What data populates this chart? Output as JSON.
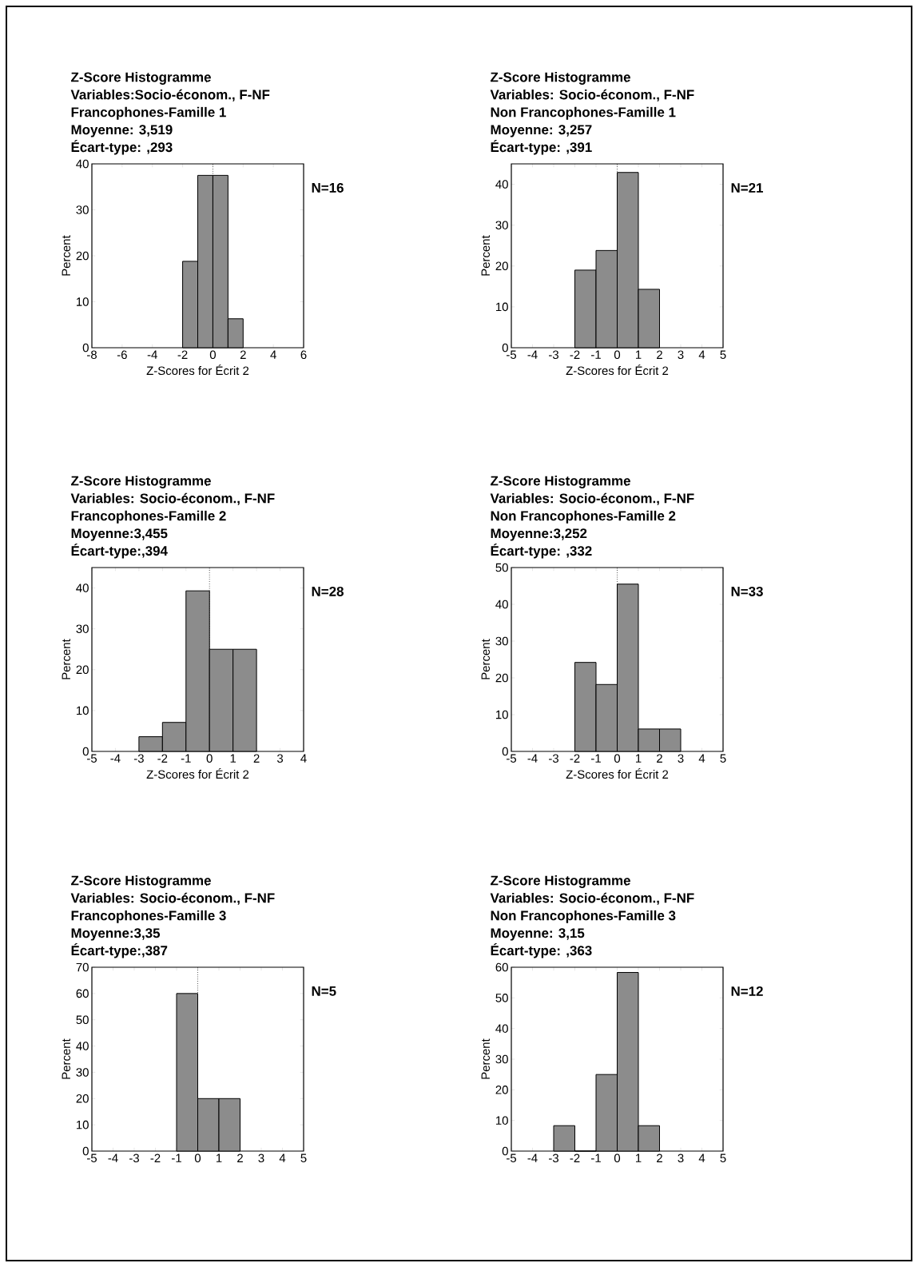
{
  "chart_data": [
    {
      "type": "histogram",
      "title": "Z-Score Histogramme",
      "subtitle": "Variables:Socio-économ., F-NF",
      "annotations": [
        "Francophones-Famille 1",
        "Moyenne: 3,519",
        "Écart-type: ,293"
      ],
      "y2label": "N=16",
      "xlabel": "Z-Scores for Écrit 2",
      "ylabel": "Percent",
      "bins": [
        -2,
        -1,
        0,
        1,
        2
      ],
      "values": [
        18.8,
        37.5,
        37.5,
        6.3
      ],
      "color": "#8c8c8c",
      "xlim": [
        -8,
        6
      ],
      "xticks": [
        -8,
        -6,
        -4,
        -2,
        0,
        2,
        4,
        6
      ],
      "ylim": [
        0,
        40
      ],
      "yticks": [
        0,
        10,
        20,
        30,
        40
      ],
      "ref_lines": [
        {
          "axis": "x",
          "value": 0,
          "line_style": "dotted"
        }
      ]
    },
    {
      "type": "histogram",
      "title": "Z-Score Histogramme",
      "subtitle": "Variables: Socio-économ., F-NF",
      "annotations": [
        "Non Francophones-Famille 1",
        "Moyenne: 3,257",
        "Écart-type: ,391"
      ],
      "y2label": "N=21",
      "xlabel": "Z-Scores for Écrit 2",
      "ylabel": "Percent",
      "bins": [
        -2,
        -1,
        0,
        1,
        2
      ],
      "values": [
        19.0,
        23.8,
        42.9,
        14.3
      ],
      "color": "#8c8c8c",
      "xlim": [
        -5,
        5
      ],
      "xticks": [
        -5,
        -4,
        -3,
        -2,
        -1,
        0,
        1,
        2,
        3,
        4,
        5
      ],
      "ylim": [
        0,
        45
      ],
      "yticks": [
        0,
        10,
        20,
        30,
        40
      ],
      "ref_lines": [
        {
          "axis": "x",
          "value": 0,
          "line_style": "dotted"
        }
      ]
    },
    {
      "type": "histogram",
      "title": "Z-Score Histogramme",
      "subtitle": "Variables: Socio-économ., F-NF",
      "annotations": [
        "Francophones-Famille 2",
        "Moyenne:3,455",
        "Écart-type:,394"
      ],
      "y2label": "N=28",
      "xlabel": "Z-Scores for Écrit 2",
      "ylabel": "Percent",
      "bins": [
        -3,
        -2,
        -1,
        0,
        1,
        2
      ],
      "values": [
        3.6,
        7.1,
        39.3,
        25.0,
        25.0
      ],
      "color": "#8c8c8c",
      "xlim": [
        -5,
        4
      ],
      "xticks": [
        -5,
        -4,
        -3,
        -2,
        -1,
        0,
        1,
        2,
        3,
        4
      ],
      "ylim": [
        0,
        45
      ],
      "yticks": [
        0,
        10,
        20,
        30,
        40
      ],
      "ref_lines": [
        {
          "axis": "x",
          "value": 0,
          "line_style": "dotted"
        }
      ]
    },
    {
      "type": "histogram",
      "title": "Z-Score Histogramme",
      "subtitle": "Variables: Socio-économ., F-NF",
      "annotations": [
        "Non Francophones-Famille 2",
        "Moyenne:3,252",
        "Écart-type: ,332"
      ],
      "y2label": "N=33",
      "xlabel": "Z-Scores for Écrit 2",
      "ylabel": "Percent",
      "bins": [
        -2,
        -1,
        0,
        1,
        2,
        3
      ],
      "values": [
        24.2,
        18.2,
        45.5,
        6.1,
        6.1
      ],
      "color": "#8c8c8c",
      "xlim": [
        -5,
        5
      ],
      "xticks": [
        -5,
        -4,
        -3,
        -2,
        -1,
        0,
        1,
        2,
        3,
        4,
        5
      ],
      "ylim": [
        0,
        50
      ],
      "yticks": [
        0,
        10,
        20,
        30,
        40,
        50
      ],
      "ref_lines": [
        {
          "axis": "x",
          "value": 0,
          "line_style": "dotted"
        }
      ]
    },
    {
      "type": "histogram",
      "title": "Z-Score Histogramme",
      "subtitle": "Variables: Socio-économ., F-NF",
      "annotations": [
        "Francophones-Famille 3",
        "Moyenne:3,35",
        "Écart-type:,387"
      ],
      "y2label": "N=5",
      "ylabel": "Percent",
      "bins": [
        -1,
        0,
        1,
        2
      ],
      "values": [
        60,
        20,
        20
      ],
      "color": "#8c8c8c",
      "xlim": [
        -5,
        5
      ],
      "xticks": [
        -5,
        -4,
        -3,
        -2,
        -1,
        0,
        1,
        2,
        3,
        4,
        5
      ],
      "ylim": [
        0,
        70
      ],
      "yticks": [
        0,
        10,
        20,
        30,
        40,
        50,
        60,
        70
      ],
      "ref_lines": [
        {
          "axis": "x",
          "value": 0,
          "line_style": "dotted"
        }
      ]
    },
    {
      "type": "histogram",
      "title": "Z-Score Histogramme",
      "subtitle": "Variables: Socio-économ., F-NF",
      "annotations": [
        "Non Francophones-Famille 3",
        "Moyenne: 3,15",
        "Écart-type: ,363"
      ],
      "y2label": "N=12",
      "ylabel": "Percent",
      "bins": [
        -3,
        -2,
        -1,
        0,
        1,
        2
      ],
      "values": [
        8.3,
        0,
        25.0,
        58.3,
        8.3
      ],
      "color": "#8c8c8c",
      "xlim": [
        -5,
        5
      ],
      "xticks": [
        -5,
        -4,
        -3,
        -2,
        -1,
        0,
        1,
        2,
        3,
        4,
        5
      ],
      "ylim": [
        0,
        60
      ],
      "yticks": [
        0,
        10,
        20,
        30,
        40,
        50,
        60
      ]
    }
  ]
}
